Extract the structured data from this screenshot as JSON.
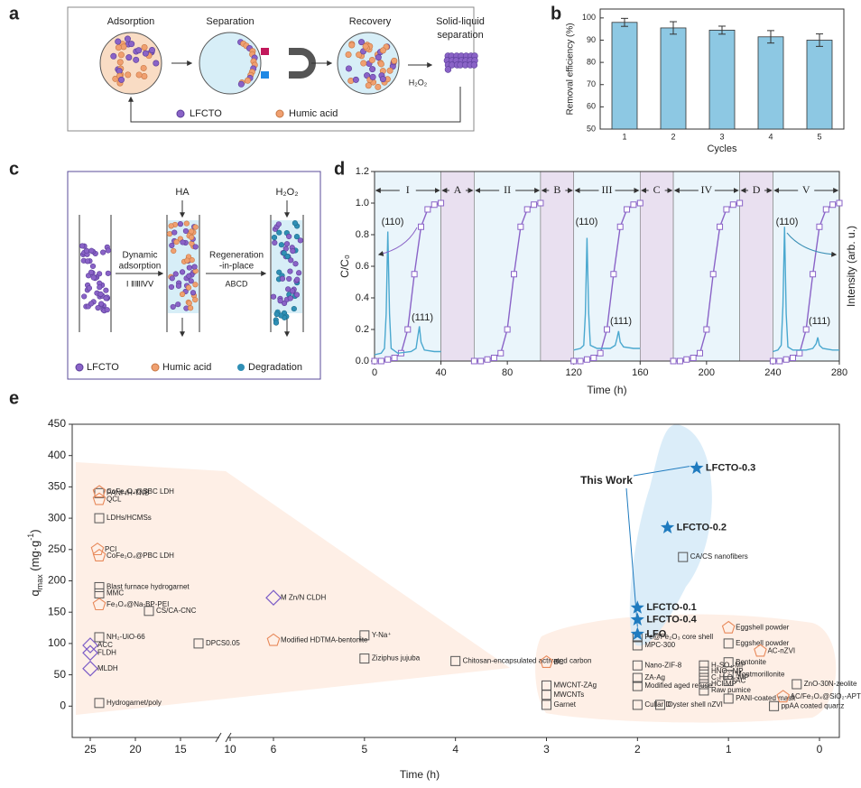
{
  "panels": [
    "a",
    "b",
    "c",
    "d",
    "e"
  ],
  "diagram_a": {
    "steps": [
      "Adsorption",
      "Separation",
      "Recovery"
    ],
    "last_step": [
      "Solid-liquid",
      "separation"
    ],
    "reagent": "H₂O₂",
    "legend": [
      "LFCTO",
      "Humic acid"
    ]
  },
  "diagram_c": {
    "inlets": [
      "HA",
      "H₂O₂"
    ],
    "step1": [
      "Dynamic",
      "adsorption"
    ],
    "step1_cycles": "Ⅰ ⅡⅢⅣⅤ",
    "step2": [
      "Regeneration",
      "-in-place"
    ],
    "step2_cycles": "ABCD",
    "legend": [
      "LFCTO",
      "Humic acid",
      "Degradation"
    ]
  },
  "chart_data": [
    {
      "type": "bar",
      "xlabel": "Cycles",
      "ylabel": "Removal efficiency (%)",
      "categories": [
        "1",
        "2",
        "3",
        "4",
        "5"
      ],
      "values": [
        98,
        95.5,
        94.5,
        91.5,
        90
      ],
      "errors": [
        1.8,
        2.8,
        1.8,
        2.8,
        2.8
      ],
      "color": "#8dc8e3",
      "ylim": [
        50,
        104
      ],
      "yticks": [
        50,
        60,
        70,
        80,
        90,
        100
      ]
    },
    {
      "type": "line",
      "xlabel": "Time (h)",
      "ylabel": "C/C₀",
      "y2label": "Intensity (arb. u.)",
      "xlim": [
        0,
        280
      ],
      "xticks": [
        0,
        40,
        80,
        120,
        160,
        200,
        240,
        280
      ],
      "ylim": [
        0,
        1.2
      ],
      "yticks": [
        {
          "value": 0,
          "label": "0.0"
        },
        0.2,
        0.4,
        0.6,
        0.8,
        {
          "value": 1,
          "label": "1.0"
        },
        {
          "value": 1.2,
          "label": "1.2"
        }
      ],
      "y2lim": [
        0,
        1.2
      ],
      "regions": [
        {
          "label": "I",
          "start": 0,
          "end": 40,
          "color": "#eaf5fb"
        },
        {
          "label": "A",
          "start": 40,
          "end": 60,
          "color": "#e9e0f0"
        },
        {
          "label": "II",
          "start": 60,
          "end": 100,
          "color": "#eaf5fb"
        },
        {
          "label": "B",
          "start": 100,
          "end": 120,
          "color": "#e9e0f0"
        },
        {
          "label": "III",
          "start": 120,
          "end": 160,
          "color": "#eaf5fb"
        },
        {
          "label": "C",
          "start": 160,
          "end": 180,
          "color": "#e9e0f0"
        },
        {
          "label": "IV",
          "start": 180,
          "end": 220,
          "color": "#eaf5fb"
        },
        {
          "label": "D",
          "start": 220,
          "end": 240,
          "color": "#e9e0f0"
        },
        {
          "label": "V",
          "start": 240,
          "end": 280,
          "color": "#eaf5fb"
        }
      ],
      "series": [
        {
          "color": "#8a63c7",
          "marker": "square",
          "x": [
            0,
            4,
            8,
            12,
            16,
            20,
            24,
            28,
            32,
            36,
            40
          ],
          "values": [
            0,
            0,
            0.01,
            0.02,
            0.05,
            0.2,
            0.55,
            0.85,
            0.96,
            0.99,
            1.0
          ]
        },
        {
          "color": "#8a63c7",
          "marker": "square",
          "x": [
            60,
            64,
            68,
            72,
            76,
            80,
            84,
            88,
            92,
            96,
            100
          ],
          "values": [
            0,
            0,
            0.01,
            0.02,
            0.05,
            0.2,
            0.55,
            0.85,
            0.96,
            0.99,
            1.0
          ]
        },
        {
          "color": "#8a63c7",
          "marker": "square",
          "x": [
            120,
            124,
            128,
            132,
            136,
            140,
            144,
            148,
            152,
            156,
            160
          ],
          "values": [
            0,
            0,
            0.01,
            0.02,
            0.05,
            0.2,
            0.55,
            0.85,
            0.96,
            0.99,
            1.0
          ]
        },
        {
          "color": "#8a63c7",
          "marker": "square",
          "x": [
            180,
            184,
            188,
            192,
            196,
            200,
            204,
            208,
            212,
            216,
            220
          ],
          "values": [
            0,
            0,
            0.01,
            0.02,
            0.05,
            0.2,
            0.55,
            0.85,
            0.96,
            0.99,
            1.0
          ]
        },
        {
          "color": "#8a63c7",
          "marker": "square",
          "x": [
            240,
            244,
            248,
            252,
            256,
            260,
            264,
            268,
            272,
            276,
            280
          ],
          "values": [
            0,
            0,
            0.01,
            0.02,
            0.05,
            0.2,
            0.55,
            0.85,
            0.96,
            0.99,
            1.0
          ]
        },
        {
          "color": "#4aa8cf",
          "axis": "y2",
          "x": [
            0,
            4,
            6,
            7,
            8,
            9,
            10,
            14,
            22,
            25,
            26,
            27,
            28,
            30,
            36,
            40
          ],
          "values": [
            0.04,
            0.05,
            0.08,
            0.3,
            0.82,
            0.3,
            0.08,
            0.05,
            0.06,
            0.08,
            0.15,
            0.22,
            0.12,
            0.07,
            0.06,
            0.06
          ]
        },
        {
          "color": "#4aa8cf",
          "axis": "y2",
          "x": [
            120,
            124,
            126,
            127,
            128,
            129,
            130,
            134,
            142,
            145,
            146,
            147,
            148,
            150,
            156,
            160
          ],
          "values": [
            0.07,
            0.08,
            0.1,
            0.3,
            0.78,
            0.3,
            0.1,
            0.08,
            0.08,
            0.1,
            0.14,
            0.19,
            0.12,
            0.09,
            0.08,
            0.08
          ]
        },
        {
          "color": "#4aa8cf",
          "axis": "y2",
          "x": [
            240,
            243,
            245,
            246,
            247,
            248,
            249,
            252,
            260,
            264,
            266,
            267,
            268,
            270,
            276,
            280
          ],
          "values": [
            0.06,
            0.07,
            0.1,
            0.35,
            0.85,
            0.3,
            0.09,
            0.07,
            0.07,
            0.08,
            0.11,
            0.15,
            0.1,
            0.08,
            0.07,
            0.07
          ]
        }
      ],
      "peak_labels": [
        "(110)",
        "(111)",
        "(110)",
        "(111)",
        "(110)",
        "(111)"
      ]
    },
    {
      "type": "scatter",
      "xlabel": "Time (h)",
      "ylabel": "q",
      "ylabel_sub": "max",
      "ylabel_unit": " (mg·g",
      "ylabel_sup": "-1",
      "ylabel_end": ")",
      "xsegments": [
        [
          27,
          11
        ],
        [
          10,
          6
        ],
        [
          6,
          0
        ]
      ],
      "xticks": [
        25,
        20,
        15,
        10,
        6,
        5,
        4,
        3,
        2,
        1,
        0
      ],
      "ylim": [
        -50,
        450
      ],
      "yticks": [
        0,
        50,
        100,
        150,
        200,
        250,
        300,
        350,
        400,
        450
      ],
      "annotation": "This Work",
      "groups": [
        {
          "marker": "square",
          "color": "#555555",
          "points": [
            {
              "label": "PANI-/H-TNB",
              "x": 24,
              "y": 340
            },
            {
              "label": "LDHs/HCMSs",
              "x": 24,
              "y": 300
            },
            {
              "label": "Blast furnace hydrogarnet",
              "x": 24,
              "y": 190
            },
            {
              "label": "MMC",
              "x": 24,
              "y": 180
            },
            {
              "label": "CS/CA-CNC",
              "x": 18.5,
              "y": 152
            },
            {
              "label": "NH₂-UiO-66",
              "x": 24,
              "y": 110
            },
            {
              "label": "DPCS0.05",
              "x": 13,
              "y": 100
            },
            {
              "label": "Hydrogarnet/poly",
              "x": 24,
              "y": 5
            },
            {
              "label": "Y-Na⁺",
              "x": 5,
              "y": 113
            },
            {
              "label": "Ziziphus jujuba",
              "x": 5,
              "y": 76
            },
            {
              "label": "Chitosan-encapsulated activated carbon",
              "x": 4,
              "y": 72
            },
            {
              "label": "MWCNT-ZAg",
              "x": 3,
              "y": 33
            },
            {
              "label": "MWCNTs",
              "x": 3,
              "y": 18
            },
            {
              "label": "Garnet",
              "x": 3,
              "y": 2
            },
            {
              "label": "Fe@Fe₂O₃ core shell",
              "x": 2,
              "y": 110
            },
            {
              "label": "MPC-300",
              "x": 2,
              "y": 97
            },
            {
              "label": "Nano-ZIF-8",
              "x": 2,
              "y": 65
            },
            {
              "label": "ZA-Ag",
              "x": 2,
              "y": 45
            },
            {
              "label": "Modified aged refuse",
              "x": 2,
              "y": 32
            },
            {
              "label": "Cullar D",
              "x": 2,
              "y": 2
            },
            {
              "label": "Oyster shell nZVI",
              "x": 1.75,
              "y": 2
            },
            {
              "label": "H₂SO₄-MP",
              "x": 1.27,
              "y": 65
            },
            {
              "label": "HNO₃-MP",
              "x": 1.27,
              "y": 55
            },
            {
              "label": "C₂H₂O₄-MP",
              "x": 1.27,
              "y": 45
            },
            {
              "label": "HCl-MP",
              "x": 1.27,
              "y": 35
            },
            {
              "label": "Raw pumice",
              "x": 1.27,
              "y": 25
            },
            {
              "label": "Bentonite",
              "x": 1,
              "y": 70
            },
            {
              "label": "Eggshell powder",
              "x": 1,
              "y": 100
            },
            {
              "label": "Montmorillonite",
              "x": 1,
              "y": 50
            },
            {
              "label": "AC",
              "x": 1,
              "y": 40
            },
            {
              "label": "PANI-coated mask",
              "x": 1,
              "y": 12
            },
            {
              "label": "ZnO-30N-zeolite",
              "x": 0.25,
              "y": 35
            },
            {
              "label": "ppAA coated quartz",
              "x": 0.5,
              "y": 0
            },
            {
              "label": "CA/CS nanofibers",
              "x": 1.5,
              "y": 238
            }
          ]
        },
        {
          "marker": "pentagon",
          "color": "#e8895a",
          "points": [
            {
              "label": "CoFe₂O₄@SBC LDH",
              "x": 24,
              "y": 342
            },
            {
              "label": "QCL",
              "x": 24,
              "y": 330
            },
            {
              "label": "PCI",
              "x": 24.2,
              "y": 250
            },
            {
              "label": "CoFe₂O₄@PBC LDH",
              "x": 24,
              "y": 240
            },
            {
              "label": "Fe₃O₄@Na-BP-PEI",
              "x": 24,
              "y": 162
            },
            {
              "label": "Modified HDTMA-bentonite",
              "x": 6,
              "y": 105
            },
            {
              "label": "BC",
              "x": 3,
              "y": 70
            },
            {
              "label": "Eggshell powder",
              "x": 1,
              "y": 125
            },
            {
              "label": "AC-nZVI",
              "x": 0.65,
              "y": 88
            },
            {
              "label": "AC/Fe₃O₄@SiO₂-APTMS",
              "x": 0.4,
              "y": 15
            }
          ]
        },
        {
          "marker": "diamond",
          "color": "#7b5cc7",
          "points": [
            {
              "label": "ACC",
              "x": 25,
              "y": 97
            },
            {
              "label": "FLDH",
              "x": 25,
              "y": 85
            },
            {
              "label": "MLDH",
              "x": 25,
              "y": 60
            },
            {
              "label": "M Zn/N CLDH",
              "x": 6,
              "y": 173
            }
          ]
        },
        {
          "marker": "star",
          "color": "#1f7bbf",
          "points": [
            {
              "label": "LFCTO-0.3",
              "x": 1.35,
              "y": 380
            },
            {
              "label": "LFCTO-0.2",
              "x": 1.67,
              "y": 285
            },
            {
              "label": "LFCTO-0.1",
              "x": 2,
              "y": 157
            },
            {
              "label": "LFCTO-0.4",
              "x": 2,
              "y": 138
            },
            {
              "label": "LFO",
              "x": 2,
              "y": 115
            }
          ]
        }
      ]
    }
  ]
}
